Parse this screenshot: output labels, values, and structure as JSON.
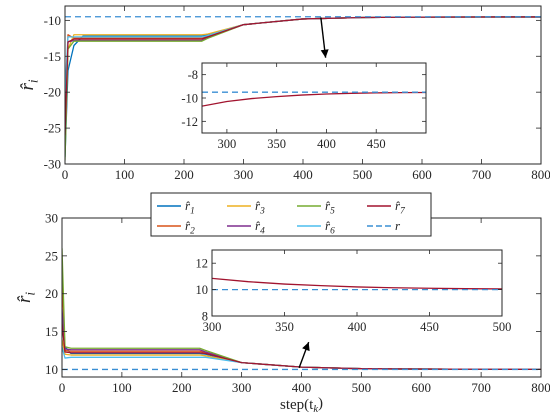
{
  "chart_data": [
    {
      "type": "line",
      "ylabel": "r̂",
      "ylabel_subscript": "i",
      "xlim": [
        0,
        800
      ],
      "ylim": [
        -30,
        -8
      ],
      "xticks": [
        0,
        100,
        200,
        300,
        400,
        500,
        600,
        700,
        800
      ],
      "yticks": [
        -30,
        -25,
        -20,
        -15,
        -10
      ],
      "xtick_labels": [
        "0",
        "100",
        "200",
        "300",
        "400",
        "500",
        "600",
        "700",
        "800"
      ],
      "ytick_labels": [
        "-30",
        "-25",
        "-20",
        "-15",
        "-10"
      ],
      "series": [
        {
          "name": "r̂1",
          "color": "#0072BD",
          "x": [
            0,
            5,
            15,
            30,
            100,
            200,
            230,
            240,
            300,
            400,
            500,
            600,
            700,
            800
          ],
          "y": [
            -29,
            -17,
            -13.5,
            -12.2,
            -12.2,
            -12.2,
            -12.2,
            -12.0,
            -10.6,
            -9.8,
            -9.6,
            -9.55,
            -9.53,
            -9.52
          ]
        },
        {
          "name": "r̂2",
          "color": "#D95319",
          "x": [
            0,
            5,
            15,
            30,
            100,
            200,
            230,
            240,
            300,
            400,
            500,
            600,
            700,
            800
          ],
          "y": [
            -28,
            -12,
            -12.5,
            -12.5,
            -12.5,
            -12.5,
            -12.5,
            -12.2,
            -10.6,
            -9.8,
            -9.6,
            -9.55,
            -9.53,
            -9.52
          ]
        },
        {
          "name": "r̂3",
          "color": "#EDB120",
          "x": [
            0,
            5,
            15,
            30,
            100,
            200,
            230,
            240,
            300,
            400,
            500,
            600,
            700,
            800
          ],
          "y": [
            -28,
            -14,
            -12.0,
            -12.0,
            -12.0,
            -12.0,
            -12.0,
            -11.9,
            -10.6,
            -9.8,
            -9.6,
            -9.55,
            -9.53,
            -9.52
          ]
        },
        {
          "name": "r̂4",
          "color": "#7E2F8E",
          "x": [
            0,
            5,
            15,
            30,
            100,
            200,
            230,
            240,
            300,
            400,
            500,
            600,
            700,
            800
          ],
          "y": [
            -27,
            -13,
            -12.8,
            -12.8,
            -12.8,
            -12.8,
            -12.8,
            -12.4,
            -10.6,
            -9.8,
            -9.6,
            -9.55,
            -9.53,
            -9.52
          ]
        },
        {
          "name": "r̂5",
          "color": "#77AC30",
          "x": [
            0,
            5,
            15,
            30,
            100,
            200,
            230,
            240,
            300,
            400,
            500,
            600,
            700,
            800
          ],
          "y": [
            -29.5,
            -14,
            -12.9,
            -12.9,
            -12.9,
            -12.9,
            -12.9,
            -12.5,
            -10.6,
            -9.8,
            -9.6,
            -9.55,
            -9.53,
            -9.52
          ]
        },
        {
          "name": "r̂6",
          "color": "#4DBEEE",
          "x": [
            0,
            5,
            15,
            30,
            100,
            200,
            230,
            240,
            300,
            400,
            500,
            600,
            700,
            800
          ],
          "y": [
            -20,
            -12.3,
            -12.3,
            -12.3,
            -12.3,
            -12.3,
            -12.3,
            -12.1,
            -10.6,
            -9.8,
            -9.6,
            -9.55,
            -9.53,
            -9.52
          ]
        },
        {
          "name": "r̂7",
          "color": "#A2142F",
          "x": [
            0,
            5,
            15,
            30,
            100,
            200,
            230,
            240,
            300,
            400,
            500,
            600,
            700,
            800
          ],
          "y": [
            -26,
            -13,
            -12.6,
            -12.6,
            -12.6,
            -12.6,
            -12.6,
            -12.3,
            -10.6,
            -9.8,
            -9.6,
            -9.55,
            -9.53,
            -9.52
          ]
        },
        {
          "name": "r",
          "color": "#3A8FD4",
          "dashed": true,
          "x": [
            0,
            800
          ],
          "y": [
            -9.5,
            -9.5
          ]
        }
      ],
      "inset": {
        "xlim": [
          275,
          500
        ],
        "ylim": [
          -13,
          -7
        ],
        "xticks": [
          300,
          350,
          400,
          450
        ],
        "yticks": [
          -12,
          -10,
          -8
        ],
        "xtick_labels": [
          "300",
          "350",
          "400",
          "450"
        ],
        "ytick_labels": [
          "-12",
          "-10",
          "-8"
        ],
        "series": [
          {
            "name": "r̂7",
            "color": "#A2142F",
            "x": [
              275,
              300,
              325,
              350,
              375,
              400,
              425,
              450,
              475,
              500
            ],
            "y": [
              -10.7,
              -10.3,
              -10.05,
              -9.88,
              -9.75,
              -9.66,
              -9.6,
              -9.56,
              -9.54,
              -9.53
            ]
          },
          {
            "name": "r",
            "color": "#3A8FD4",
            "dashed": true,
            "x": [
              275,
              500
            ],
            "y": [
              -9.5,
              -9.5
            ]
          }
        ]
      }
    },
    {
      "type": "line",
      "ylabel": "r̂",
      "ylabel_subscript": "i",
      "xlabel": "step(t",
      "xlabel_subscript": "k",
      "xlabel_suffix": ")",
      "xlim": [
        0,
        800
      ],
      "ylim": [
        9,
        30
      ],
      "xticks": [
        0,
        100,
        200,
        300,
        400,
        500,
        600,
        700,
        800
      ],
      "yticks": [
        10,
        15,
        20,
        25,
        30
      ],
      "xtick_labels": [
        "0",
        "100",
        "200",
        "300",
        "400",
        "500",
        "600",
        "700",
        "800"
      ],
      "ytick_labels": [
        "10",
        "15",
        "20",
        "25",
        "30"
      ],
      "series": [
        {
          "name": "r̂1",
          "color": "#0072BD",
          "x": [
            0,
            5,
            15,
            30,
            100,
            200,
            230,
            240,
            300,
            400,
            500,
            600,
            700,
            800
          ],
          "y": [
            17,
            13,
            12.1,
            12.1,
            12.1,
            12.1,
            12.1,
            12.0,
            10.9,
            10.3,
            10.1,
            10.05,
            10.02,
            10.01
          ]
        },
        {
          "name": "r̂2",
          "color": "#D95319",
          "x": [
            0,
            5,
            15,
            30,
            100,
            200,
            230,
            240,
            300,
            400,
            500,
            600,
            700,
            800
          ],
          "y": [
            22,
            12.5,
            12.4,
            12.4,
            12.4,
            12.4,
            12.4,
            12.2,
            10.9,
            10.3,
            10.1,
            10.05,
            10.02,
            10.01
          ]
        },
        {
          "name": "r̂3",
          "color": "#EDB120",
          "x": [
            0,
            5,
            15,
            30,
            100,
            200,
            230,
            240,
            300,
            400,
            500,
            600,
            700,
            800
          ],
          "y": [
            14,
            12,
            11.9,
            11.9,
            11.9,
            11.9,
            11.9,
            11.8,
            10.9,
            10.3,
            10.1,
            10.05,
            10.02,
            10.01
          ]
        },
        {
          "name": "r̂4",
          "color": "#7E2F8E",
          "x": [
            0,
            5,
            15,
            30,
            100,
            200,
            230,
            240,
            300,
            400,
            500,
            600,
            700,
            800
          ],
          "y": [
            18,
            12.7,
            12.6,
            12.6,
            12.6,
            12.6,
            12.6,
            12.3,
            10.9,
            10.3,
            10.1,
            10.05,
            10.02,
            10.01
          ]
        },
        {
          "name": "r̂5",
          "color": "#77AC30",
          "x": [
            0,
            5,
            15,
            30,
            100,
            200,
            230,
            240,
            300,
            400,
            500,
            600,
            700,
            800
          ],
          "y": [
            26,
            13,
            12.8,
            12.8,
            12.8,
            12.8,
            12.8,
            12.5,
            10.9,
            10.3,
            10.1,
            10.05,
            10.02,
            10.01
          ]
        },
        {
          "name": "r̂6",
          "color": "#4DBEEE",
          "x": [
            0,
            5,
            15,
            30,
            100,
            200,
            230,
            240,
            300,
            400,
            500,
            600,
            700,
            800
          ],
          "y": [
            13,
            11.5,
            11.6,
            11.6,
            11.6,
            11.6,
            11.6,
            11.6,
            10.9,
            10.3,
            10.1,
            10.05,
            10.02,
            10.01
          ]
        },
        {
          "name": "r̂7",
          "color": "#A2142F",
          "x": [
            0,
            5,
            15,
            30,
            100,
            200,
            230,
            240,
            300,
            400,
            500,
            600,
            700,
            800
          ],
          "y": [
            16,
            12.3,
            12.2,
            12.2,
            12.2,
            12.2,
            12.2,
            12.1,
            10.9,
            10.3,
            10.1,
            10.05,
            10.02,
            10.01
          ]
        },
        {
          "name": "r",
          "color": "#3A8FD4",
          "dashed": true,
          "x": [
            0,
            800
          ],
          "y": [
            10,
            10
          ]
        }
      ],
      "inset": {
        "xlim": [
          300,
          500
        ],
        "ylim": [
          8,
          13
        ],
        "xticks": [
          300,
          350,
          400,
          450,
          500
        ],
        "yticks": [
          8,
          10,
          12
        ],
        "xtick_labels": [
          "300",
          "350",
          "400",
          "450",
          "500"
        ],
        "ytick_labels": [
          "8",
          "10",
          "12"
        ],
        "series": [
          {
            "name": "r̂7",
            "color": "#A2142F",
            "x": [
              300,
              325,
              350,
              375,
              400,
              425,
              450,
              475,
              500
            ],
            "y": [
              10.85,
              10.6,
              10.42,
              10.3,
              10.2,
              10.14,
              10.1,
              10.07,
              10.05
            ]
          },
          {
            "name": "r",
            "color": "#3A8FD4",
            "dashed": true,
            "x": [
              300,
              500
            ],
            "y": [
              10,
              10
            ]
          }
        ]
      }
    }
  ],
  "legend": {
    "entries": [
      {
        "name": "r̂1",
        "symbol": "r̂",
        "sub": "1",
        "color": "#0072BD",
        "dashed": false
      },
      {
        "name": "r̂3",
        "symbol": "r̂",
        "sub": "3",
        "color": "#EDB120",
        "dashed": false
      },
      {
        "name": "r̂5",
        "symbol": "r̂",
        "sub": "5",
        "color": "#77AC30",
        "dashed": false
      },
      {
        "name": "r̂7",
        "symbol": "r̂",
        "sub": "7",
        "color": "#A2142F",
        "dashed": false
      },
      {
        "name": "r̂2",
        "symbol": "r̂",
        "sub": "2",
        "color": "#D95319",
        "dashed": false
      },
      {
        "name": "r̂4",
        "symbol": "r̂",
        "sub": "4",
        "color": "#7E2F8E",
        "dashed": false
      },
      {
        "name": "r̂6",
        "symbol": "r̂",
        "sub": "6",
        "color": "#4DBEEE",
        "dashed": false
      },
      {
        "name": "r",
        "symbol": "r",
        "sub": "",
        "color": "#3A8FD4",
        "dashed": true
      }
    ]
  }
}
